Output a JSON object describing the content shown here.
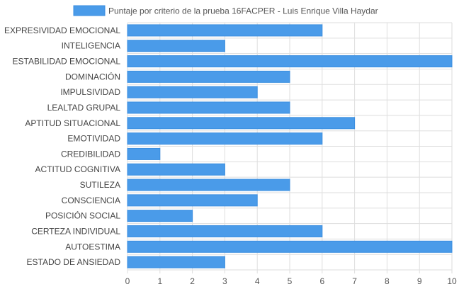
{
  "chart_data": {
    "type": "bar",
    "orientation": "horizontal",
    "categories": [
      "EXPRESIVIDAD EMOCIONAL",
      "INTELIGENCIA",
      "ESTABILIDAD EMOCIONAL",
      "DOMINACIÓN",
      "IMPULSIVIDAD",
      "LEALTAD GRUPAL",
      "APTITUD SITUACIONAL",
      "EMOTIVIDAD",
      "CREDIBILIDAD",
      "ACTITUD COGNITIVA",
      "SUTILEZA",
      "CONSCIENCIA",
      "POSICIÓN SOCIAL",
      "CERTEZA INDIVIDUAL",
      "AUTOESTIMA",
      "ESTADO DE ANSIEDAD"
    ],
    "series": [
      {
        "name": "Puntaje por criterio de la prueba 16FACPER - Luis Enrique Villa Haydar",
        "values": [
          6,
          3,
          10,
          5,
          4,
          5,
          7,
          6,
          1,
          3,
          5,
          4,
          2,
          6,
          10,
          3
        ],
        "color": "#4a9be9"
      }
    ],
    "title": "",
    "xlabel": "",
    "ylabel": "",
    "xlim": [
      0,
      10
    ],
    "xticks": [
      "0",
      "1",
      "2",
      "3",
      "4",
      "5",
      "6",
      "7",
      "8",
      "9",
      "10"
    ],
    "grid": true,
    "legend_position": "top-center"
  },
  "colors": {
    "bar_fill": "#4a9be9",
    "bar_stroke": "#3a8ee0",
    "grid": "#dedede",
    "axis_text": "#555555",
    "label_text": "#444444"
  }
}
